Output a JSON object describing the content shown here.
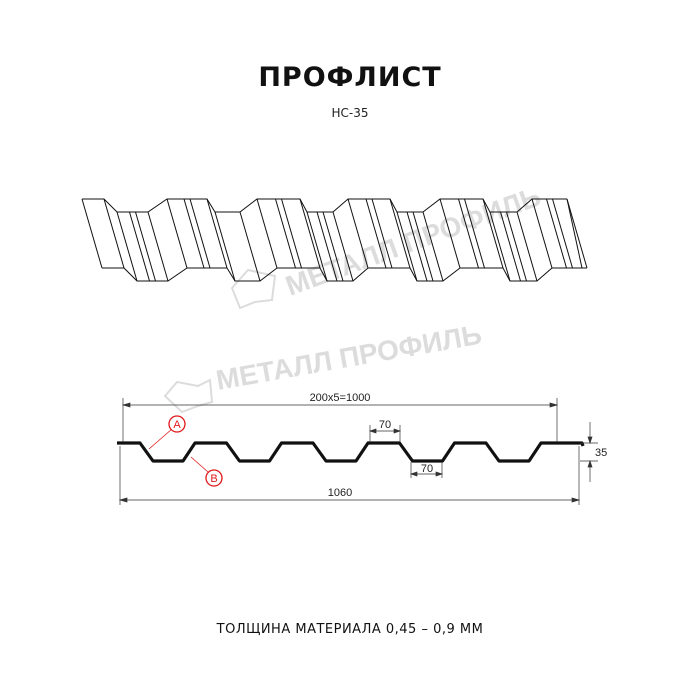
{
  "title": "ПРОФЛИСТ",
  "subtitle": "НС-35",
  "watermark": "МЕТАЛЛ ПРОФИЛЬ",
  "dimensions": {
    "pitch_total": "200x5=1000",
    "crest_width": "70",
    "valley_width": "70",
    "height": "35",
    "total_width": "1060"
  },
  "markers": {
    "a": "A",
    "b": "B"
  },
  "footer": "ТОЛЩИНА МАТЕРИАЛА 0,45 – 0,9 ММ",
  "colors": {
    "line": "#111111",
    "marker": "#e0191b",
    "watermark": "#d9d9d9"
  }
}
